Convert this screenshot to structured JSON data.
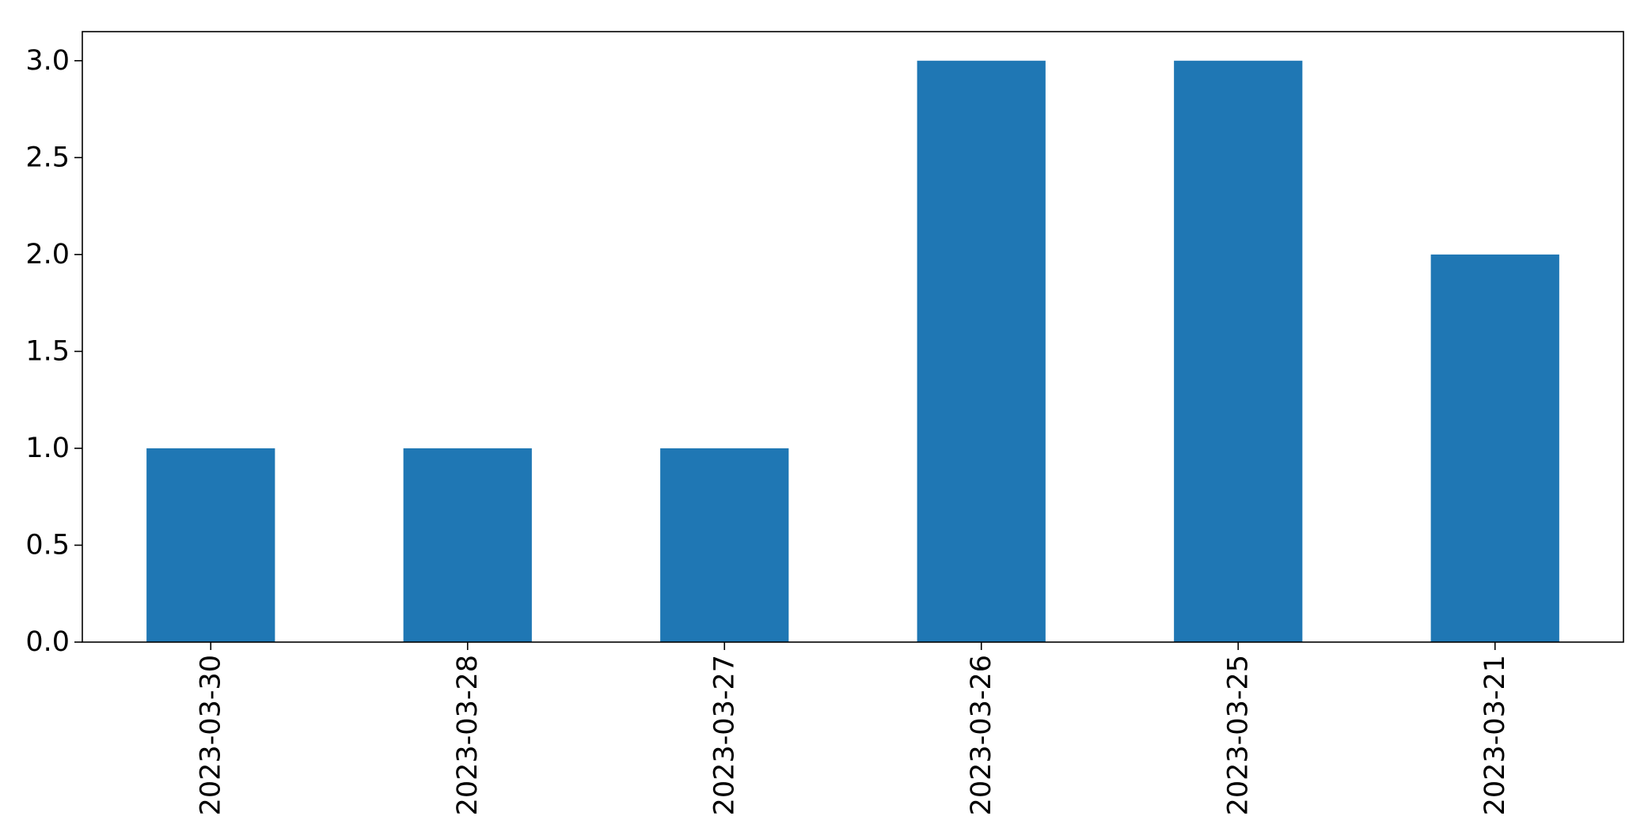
{
  "chart_data": {
    "type": "bar",
    "title": "",
    "xlabel": "",
    "ylabel": "",
    "categories": [
      "2023-03-30",
      "2023-03-28",
      "2023-03-27",
      "2023-03-26",
      "2023-03-25",
      "2023-03-21"
    ],
    "values": [
      1,
      1,
      1,
      3,
      3,
      2
    ],
    "ylim": [
      0,
      3.15
    ],
    "yticks": [
      0.0,
      0.5,
      1.0,
      1.5,
      2.0,
      2.5,
      3.0
    ],
    "ytick_labels": [
      "0.0",
      "0.5",
      "1.0",
      "1.5",
      "2.0",
      "2.5",
      "3.0"
    ],
    "grid": false,
    "legend": "none",
    "bar_color": "#1f77b4"
  }
}
